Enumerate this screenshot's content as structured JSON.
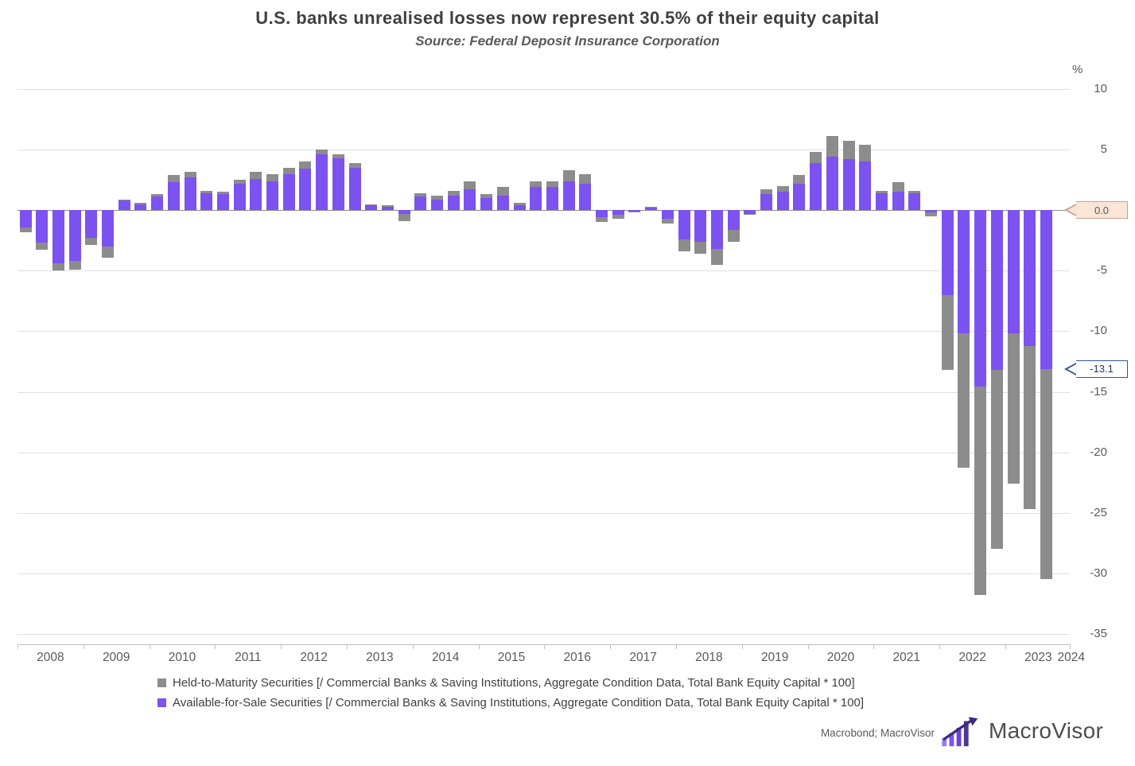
{
  "header": {
    "title": "U.S. banks unrealised losses now represent 30.5% of their equity capital",
    "subtitle": "Source: Federal Deposit Insurance Corporation"
  },
  "footer": {
    "attribution": "Macrobond; MacroVisor",
    "brand": "MacroVisor"
  },
  "colors": {
    "htm_gray": "#8c8c8c",
    "afs_purple": "#7c52f0",
    "zero_badge_bg": "#fbe5d6",
    "last_value_badge_border": "#2f5496",
    "last_value_badge_text": "#1f3864"
  },
  "chart_data": {
    "type": "bar",
    "stacked": true,
    "title": "U.S. banks unrealised losses now represent 30.5% of their equity capital",
    "subtitle": "Source: Federal Deposit Insurance Corporation",
    "ylabel": "%",
    "xlabel": "",
    "ylim": [
      -35,
      10
    ],
    "yticks": [
      10,
      5,
      0,
      -5,
      -10,
      -15,
      -20,
      -25,
      -30,
      -35
    ],
    "grid": "horizontal",
    "legend_position": "bottom-left",
    "latest_total": -30.5,
    "x": [
      "2008 Q1",
      "2008 Q2",
      "2008 Q3",
      "2008 Q4",
      "2009 Q1",
      "2009 Q2",
      "2009 Q3",
      "2009 Q4",
      "2010 Q1",
      "2010 Q2",
      "2010 Q3",
      "2010 Q4",
      "2011 Q1",
      "2011 Q2",
      "2011 Q3",
      "2011 Q4",
      "2012 Q1",
      "2012 Q2",
      "2012 Q3",
      "2012 Q4",
      "2013 Q1",
      "2013 Q2",
      "2013 Q3",
      "2013 Q4",
      "2014 Q1",
      "2014 Q2",
      "2014 Q3",
      "2014 Q4",
      "2015 Q1",
      "2015 Q2",
      "2015 Q3",
      "2015 Q4",
      "2016 Q1",
      "2016 Q2",
      "2016 Q3",
      "2016 Q4",
      "2017 Q1",
      "2017 Q2",
      "2017 Q3",
      "2017 Q4",
      "2018 Q1",
      "2018 Q2",
      "2018 Q3",
      "2018 Q4",
      "2019 Q1",
      "2019 Q2",
      "2019 Q3",
      "2019 Q4",
      "2020 Q1",
      "2020 Q2",
      "2020 Q3",
      "2020 Q4",
      "2021 Q1",
      "2021 Q2",
      "2021 Q3",
      "2021 Q4",
      "2022 Q1",
      "2022 Q2",
      "2022 Q3",
      "2022 Q4",
      "2023 Q1",
      "2023 Q2",
      "2023 Q3"
    ],
    "xlabels": [
      "2008",
      "2009",
      "2010",
      "2011",
      "2012",
      "2013",
      "2014",
      "2015",
      "2016",
      "2017",
      "2018",
      "2019",
      "2020",
      "2021",
      "2022",
      "2023",
      "2024"
    ],
    "series": [
      {
        "id": "htm",
        "name": "Held-to-Maturity Securities",
        "legend_label": "Held-to-Maturity Securities [/ Commercial Banks & Saving Institutions, Aggregate Condition Data, Total Bank Equity Capital * 100]",
        "color": "#8c8c8c",
        "values": [
          -0.4,
          -0.6,
          -0.6,
          -0.7,
          -0.6,
          -0.9,
          0.1,
          0.1,
          0.2,
          0.6,
          0.5,
          0.2,
          0.2,
          0.3,
          0.6,
          0.6,
          0.5,
          0.6,
          0.4,
          0.3,
          0.4,
          0.1,
          0.1,
          -0.6,
          0.3,
          0.3,
          0.4,
          0.7,
          0.3,
          0.7,
          0.2,
          0.5,
          0.5,
          0.9,
          0.8,
          -0.4,
          -0.3,
          -0.1,
          0.1,
          -0.4,
          -1.0,
          -1.0,
          -1.3,
          -1.0,
          -0.1,
          0.4,
          0.5,
          0.7,
          0.9,
          1.7,
          1.5,
          1.4,
          0.2,
          0.8,
          0.2,
          -0.3,
          -6.2,
          -11.1,
          -17.2,
          -14.8,
          -12.4,
          -13.5,
          -17.4
        ]
      },
      {
        "id": "afs",
        "name": "Available-for-Sale Securities",
        "legend_label": "Available-for-Sale Securities [/ Commercial Banks & Saving Institutions, Aggregate Condition Data, Total Bank Equity Capital * 100]",
        "color": "#7c52f0",
        "values": [
          -1.4,
          -2.7,
          -4.4,
          -4.2,
          -2.3,
          -3.0,
          0.8,
          0.5,
          1.1,
          2.3,
          2.7,
          1.4,
          1.3,
          2.2,
          2.6,
          2.4,
          3.0,
          3.4,
          4.6,
          4.3,
          3.5,
          0.4,
          0.3,
          -0.3,
          1.1,
          0.9,
          1.2,
          1.7,
          1.0,
          1.2,
          0.4,
          1.9,
          1.9,
          2.4,
          2.2,
          -0.6,
          -0.4,
          -0.1,
          0.2,
          -0.7,
          -2.4,
          -2.6,
          -3.2,
          -1.6,
          -0.3,
          1.3,
          1.5,
          2.2,
          3.9,
          4.4,
          4.2,
          4.0,
          1.4,
          1.5,
          1.4,
          -0.2,
          -7.0,
          -10.2,
          -14.6,
          -13.2,
          -10.2,
          -11.2,
          -13.1
        ]
      }
    ],
    "annotations": [
      {
        "label": "0.0",
        "value": 0.0,
        "bg": "#fbe5d6",
        "border": "#c9a28c",
        "text_color": "#595959"
      },
      {
        "label": "-13.1",
        "value": -13.1,
        "bg": "#ffffff",
        "border": "#2f5496",
        "text_color": "#1f3864"
      }
    ]
  }
}
